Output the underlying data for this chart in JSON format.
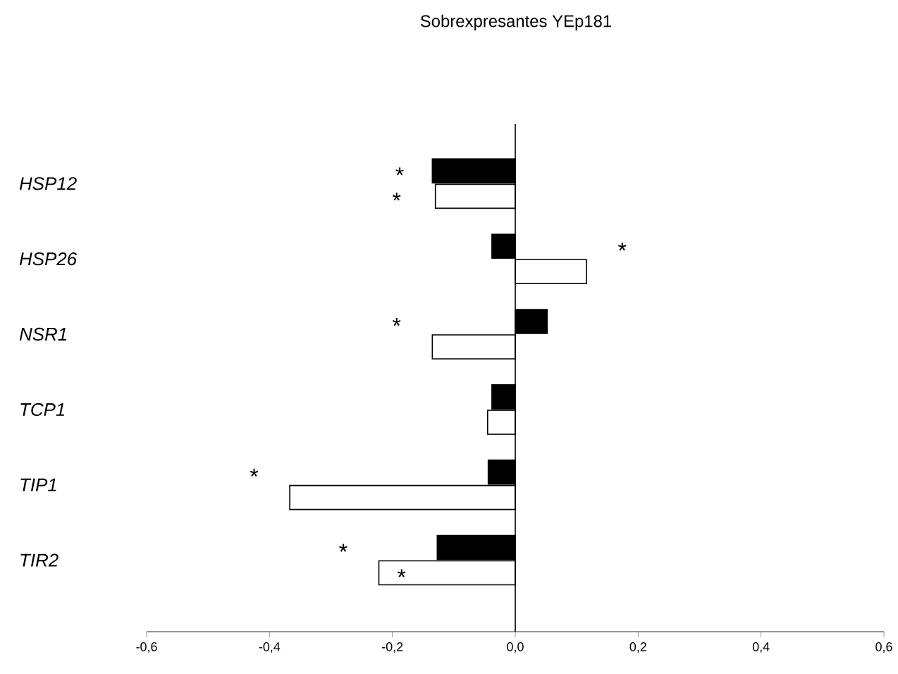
{
  "chart_data": {
    "type": "bar",
    "orientation": "horizontal",
    "title": "Sobrexpresantes YEp181",
    "categories": [
      "*HSP12*",
      "*HSP26*",
      "*NSR1*",
      "*TCP1*",
      "*TIP1*",
      "*TIR2*"
    ],
    "series": [
      {
        "color": "#000000",
        "values": [
          -0.135,
          -0.038,
          0.052,
          -0.038,
          -0.044,
          -0.127
        ],
        "value_labels": [
          "*",
          null,
          null,
          null,
          null,
          "*"
        ]
      },
      {
        "color": "#ffffff",
        "values": [
          -0.13,
          0.116,
          -0.135,
          -0.045,
          -0.367,
          -0.222
        ],
        "value_labels": [
          "*",
          "*",
          "*",
          null,
          "*",
          "*"
        ]
      }
    ],
    "xlim": [
      -0.6,
      0.6
    ],
    "xticks": [
      {
        "value": -0.6,
        "label": "-0,6"
      },
      {
        "value": -0.4,
        "label": "-0,4"
      },
      {
        "value": -0.2,
        "label": "-0,2"
      },
      {
        "value": 0.0,
        "label": "0,0"
      },
      {
        "value": 0.2,
        "label": "0,2"
      },
      {
        "value": 0.4,
        "label": "0,4"
      },
      {
        "value": 0.6,
        "label": "0,6"
      }
    ]
  }
}
